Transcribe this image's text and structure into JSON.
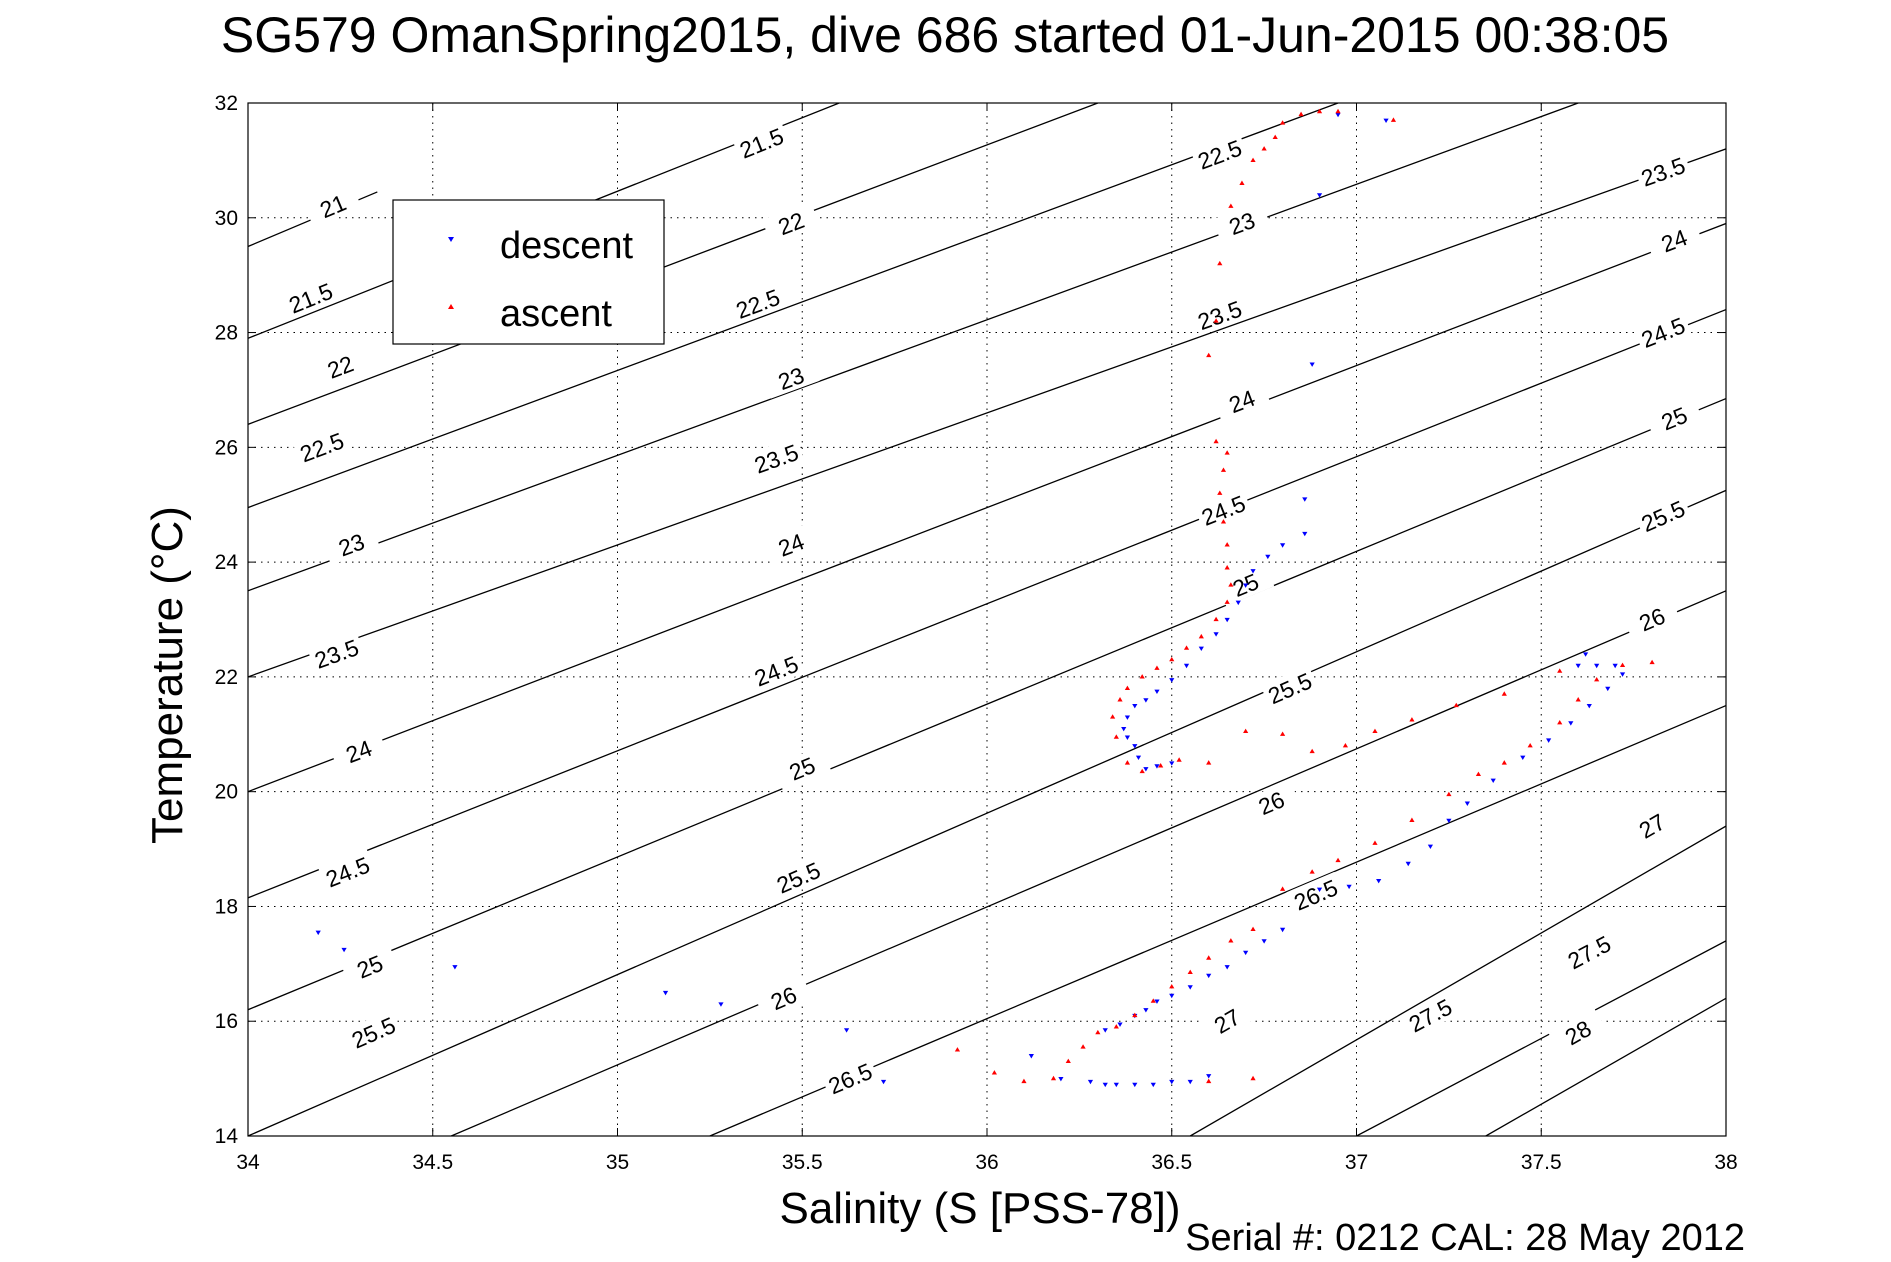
{
  "chart_data": {
    "type": "scatter",
    "title": "SG579 OmanSpring2015, dive 686 started 01-Jun-2015 00:38:05",
    "xlabel": "Salinity (S [PSS-78])",
    "ylabel": "Temperature (°C)",
    "footer": "Serial #: 0212  CAL: 28 May 2012",
    "xlim": [
      34,
      38
    ],
    "ylim": [
      14,
      32
    ],
    "xticks": [
      "34",
      "34.5",
      "35",
      "35.5",
      "36",
      "36.5",
      "37",
      "37.5",
      "38"
    ],
    "yticks": [
      "14",
      "16",
      "18",
      "20",
      "22",
      "24",
      "26",
      "28",
      "30",
      "32"
    ],
    "grid": true,
    "legend_position": "top-left",
    "colors": {
      "descent": "#0000ff",
      "ascent": "#ff0000",
      "contour": "#000000"
    },
    "density_contours": [
      {
        "label": "21",
        "line": [
          [
            34,
            29.5
          ],
          [
            34.35,
            30.45
          ]
        ],
        "label_at": [
          34.23,
          30.2
        ]
      },
      {
        "label": "21.5",
        "line": [
          [
            34,
            27.9
          ],
          [
            35.6,
            32
          ]
        ],
        "label_at": [
          34.17,
          28.6
        ]
      },
      {
        "label": "22",
        "line": [
          [
            34,
            26.4
          ],
          [
            36.3,
            32
          ]
        ],
        "label_at": [
          34.25,
          27.4
        ]
      },
      {
        "label": "22.5",
        "line": [
          [
            34,
            24.95
          ],
          [
            36.95,
            32
          ]
        ],
        "label_at": [
          34.2,
          26.0
        ]
      },
      {
        "label": "23",
        "line": [
          [
            34,
            23.5
          ],
          [
            37.6,
            32
          ]
        ],
        "label_at": [
          34.28,
          24.3
        ]
      },
      {
        "label": "23.5",
        "line": [
          [
            34,
            22.0
          ],
          [
            38,
            31.2
          ]
        ],
        "label_at": [
          34.24,
          22.4
        ]
      },
      {
        "label": "24",
        "line": [
          [
            34,
            20.0
          ],
          [
            38,
            29.9
          ]
        ],
        "label_at": [
          34.3,
          20.7
        ]
      },
      {
        "label": "24.5",
        "line": [
          [
            34,
            18.15
          ],
          [
            38,
            28.4
          ]
        ],
        "label_at": [
          34.27,
          18.6
        ]
      },
      {
        "label": "25",
        "line": [
          [
            34,
            16.2
          ],
          [
            38,
            26.85
          ]
        ],
        "label_at": [
          34.33,
          16.95
        ]
      },
      {
        "label": "25.5",
        "line": [
          [
            34,
            14.0
          ],
          [
            38,
            25.25
          ]
        ],
        "label_at": [
          34.34,
          15.8
        ]
      },
      {
        "label": "26",
        "line": [
          [
            34.55,
            14.0
          ],
          [
            38,
            23.5
          ]
        ],
        "label_at": [
          35.45,
          16.4
        ]
      },
      {
        "label": "26.5",
        "line": [
          [
            35.25,
            14.0
          ],
          [
            38,
            21.5
          ]
        ],
        "label_at": [
          35.63,
          15.0
        ]
      },
      {
        "label": "27",
        "line": [
          [
            36.55,
            14.0
          ],
          [
            38,
            19.4
          ]
        ],
        "label_at": [
          36.65,
          16.0
        ]
      },
      {
        "label": "27.5",
        "line": [
          [
            37.0,
            14.0
          ],
          [
            38,
            17.4
          ]
        ],
        "label_at": [
          37.2,
          16.1
        ]
      },
      {
        "label": "28",
        "line": [
          [
            37.35,
            14.0
          ],
          [
            38,
            16.4
          ]
        ],
        "label_at": [
          37.6,
          15.8
        ]
      }
    ],
    "contour_labels_extra": [
      {
        "label": "21.5",
        "at": [
          35.39,
          31.3
        ]
      },
      {
        "label": "22",
        "at": [
          35.47,
          29.9
        ]
      },
      {
        "label": "22.5",
        "at": [
          35.38,
          28.5
        ]
      },
      {
        "label": "23",
        "at": [
          35.47,
          27.2
        ]
      },
      {
        "label": "23.5",
        "at": [
          35.43,
          25.8
        ]
      },
      {
        "label": "24",
        "at": [
          35.47,
          24.3
        ]
      },
      {
        "label": "24.5",
        "at": [
          35.43,
          22.1
        ]
      },
      {
        "label": "25",
        "at": [
          35.5,
          20.4
        ]
      },
      {
        "label": "25.5",
        "at": [
          35.49,
          18.5
        ]
      },
      {
        "label": "22.5",
        "at": [
          36.63,
          31.1
        ]
      },
      {
        "label": "23",
        "at": [
          36.69,
          29.9
        ]
      },
      {
        "label": "23.5",
        "at": [
          36.63,
          28.3
        ]
      },
      {
        "label": "24",
        "at": [
          36.69,
          26.8
        ]
      },
      {
        "label": "24.5",
        "at": [
          36.64,
          24.9
        ]
      },
      {
        "label": "25",
        "at": [
          36.7,
          23.6
        ]
      },
      {
        "label": "25.5",
        "at": [
          36.82,
          21.8
        ]
      },
      {
        "label": "26",
        "at": [
          36.77,
          19.8
        ]
      },
      {
        "label": "26.5",
        "at": [
          36.89,
          18.2
        ]
      },
      {
        "label": "23.5",
        "at": [
          37.83,
          30.8
        ]
      },
      {
        "label": "24",
        "at": [
          37.86,
          29.6
        ]
      },
      {
        "label": "24.5",
        "at": [
          37.83,
          28.0
        ]
      },
      {
        "label": "25",
        "at": [
          37.86,
          26.5
        ]
      },
      {
        "label": "25.5",
        "at": [
          37.83,
          24.8
        ]
      },
      {
        "label": "26",
        "at": [
          37.8,
          23.0
        ]
      },
      {
        "label": "27",
        "at": [
          37.8,
          19.4
        ]
      },
      {
        "label": "27.5",
        "at": [
          37.63,
          17.2
        ]
      }
    ],
    "series": [
      {
        "name": "descent",
        "marker": "down-triangle",
        "points": [
          [
            34.19,
            17.55
          ],
          [
            34.26,
            17.25
          ],
          [
            34.56,
            16.95
          ],
          [
            35.13,
            16.5
          ],
          [
            35.28,
            16.3
          ],
          [
            35.62,
            15.85
          ],
          [
            35.72,
            14.95
          ],
          [
            36.12,
            15.4
          ],
          [
            36.2,
            15.0
          ],
          [
            36.28,
            14.95
          ],
          [
            36.32,
            14.9
          ],
          [
            36.35,
            14.9
          ],
          [
            36.4,
            14.9
          ],
          [
            36.45,
            14.9
          ],
          [
            36.5,
            14.95
          ],
          [
            36.55,
            14.95
          ],
          [
            36.6,
            15.05
          ],
          [
            36.32,
            15.85
          ],
          [
            36.36,
            15.95
          ],
          [
            36.4,
            16.1
          ],
          [
            36.43,
            16.2
          ],
          [
            36.46,
            16.35
          ],
          [
            36.5,
            16.45
          ],
          [
            36.55,
            16.6
          ],
          [
            36.6,
            16.8
          ],
          [
            36.65,
            16.95
          ],
          [
            36.7,
            17.2
          ],
          [
            36.75,
            17.4
          ],
          [
            36.8,
            17.6
          ],
          [
            36.9,
            18.3
          ],
          [
            36.98,
            18.35
          ],
          [
            37.06,
            18.45
          ],
          [
            37.14,
            18.75
          ],
          [
            37.2,
            19.05
          ],
          [
            37.25,
            19.5
          ],
          [
            37.3,
            19.8
          ],
          [
            37.37,
            20.2
          ],
          [
            37.45,
            20.6
          ],
          [
            37.52,
            20.9
          ],
          [
            37.58,
            21.2
          ],
          [
            37.63,
            21.5
          ],
          [
            37.68,
            21.8
          ],
          [
            37.72,
            22.05
          ],
          [
            37.7,
            22.2
          ],
          [
            37.65,
            22.2
          ],
          [
            37.6,
            22.2
          ],
          [
            37.62,
            22.4
          ],
          [
            36.37,
            21.1
          ],
          [
            36.38,
            20.95
          ],
          [
            36.4,
            20.8
          ],
          [
            36.41,
            20.6
          ],
          [
            36.43,
            20.4
          ],
          [
            36.46,
            20.45
          ],
          [
            36.5,
            20.5
          ],
          [
            36.38,
            21.3
          ],
          [
            36.4,
            21.5
          ],
          [
            36.43,
            21.6
          ],
          [
            36.46,
            21.75
          ],
          [
            36.5,
            21.95
          ],
          [
            36.54,
            22.2
          ],
          [
            36.58,
            22.5
          ],
          [
            36.62,
            22.75
          ],
          [
            36.65,
            23.0
          ],
          [
            36.68,
            23.3
          ],
          [
            36.7,
            23.6
          ],
          [
            36.72,
            23.85
          ],
          [
            36.76,
            24.1
          ],
          [
            36.8,
            24.3
          ],
          [
            36.86,
            24.5
          ],
          [
            36.86,
            25.1
          ],
          [
            36.88,
            27.45
          ],
          [
            36.9,
            30.4
          ],
          [
            36.95,
            31.8
          ],
          [
            37.08,
            31.7
          ]
        ]
      },
      {
        "name": "ascent",
        "marker": "up-triangle",
        "points": [
          [
            35.92,
            15.5
          ],
          [
            36.02,
            15.1
          ],
          [
            36.1,
            14.95
          ],
          [
            36.18,
            15.0
          ],
          [
            36.22,
            15.3
          ],
          [
            36.26,
            15.55
          ],
          [
            36.3,
            15.8
          ],
          [
            36.35,
            15.9
          ],
          [
            36.4,
            16.1
          ],
          [
            36.45,
            16.35
          ],
          [
            36.5,
            16.6
          ],
          [
            36.55,
            16.85
          ],
          [
            36.6,
            17.1
          ],
          [
            36.66,
            17.4
          ],
          [
            36.72,
            17.6
          ],
          [
            36.72,
            15.0
          ],
          [
            36.6,
            14.95
          ],
          [
            36.8,
            18.3
          ],
          [
            36.88,
            18.6
          ],
          [
            36.95,
            18.8
          ],
          [
            37.05,
            19.1
          ],
          [
            37.15,
            19.5
          ],
          [
            37.25,
            19.95
          ],
          [
            37.33,
            20.3
          ],
          [
            37.4,
            20.5
          ],
          [
            37.47,
            20.8
          ],
          [
            37.55,
            21.2
          ],
          [
            37.6,
            21.6
          ],
          [
            37.65,
            21.95
          ],
          [
            37.72,
            22.2
          ],
          [
            37.8,
            22.25
          ],
          [
            37.55,
            22.1
          ],
          [
            37.4,
            21.7
          ],
          [
            37.27,
            21.5
          ],
          [
            37.15,
            21.25
          ],
          [
            37.05,
            21.05
          ],
          [
            36.97,
            20.8
          ],
          [
            36.88,
            20.7
          ],
          [
            36.8,
            21.0
          ],
          [
            36.7,
            21.05
          ],
          [
            36.6,
            20.5
          ],
          [
            36.52,
            20.55
          ],
          [
            36.47,
            20.45
          ],
          [
            36.42,
            20.35
          ],
          [
            36.38,
            20.5
          ],
          [
            36.35,
            20.95
          ],
          [
            36.34,
            21.3
          ],
          [
            36.36,
            21.6
          ],
          [
            36.38,
            21.8
          ],
          [
            36.42,
            22.0
          ],
          [
            36.46,
            22.15
          ],
          [
            36.5,
            22.3
          ],
          [
            36.54,
            22.5
          ],
          [
            36.58,
            22.7
          ],
          [
            36.62,
            23.0
          ],
          [
            36.65,
            23.3
          ],
          [
            36.66,
            23.6
          ],
          [
            36.65,
            23.9
          ],
          [
            36.65,
            24.3
          ],
          [
            36.64,
            24.7
          ],
          [
            36.63,
            25.2
          ],
          [
            36.64,
            25.6
          ],
          [
            36.65,
            25.9
          ],
          [
            36.62,
            26.1
          ],
          [
            36.6,
            27.6
          ],
          [
            36.62,
            28.2
          ],
          [
            36.63,
            29.2
          ],
          [
            36.66,
            30.2
          ],
          [
            36.69,
            30.6
          ],
          [
            36.72,
            31.0
          ],
          [
            36.75,
            31.2
          ],
          [
            36.78,
            31.4
          ],
          [
            36.8,
            31.65
          ],
          [
            36.85,
            31.8
          ],
          [
            36.9,
            31.85
          ],
          [
            36.95,
            31.85
          ],
          [
            37.1,
            31.7
          ]
        ]
      }
    ]
  }
}
